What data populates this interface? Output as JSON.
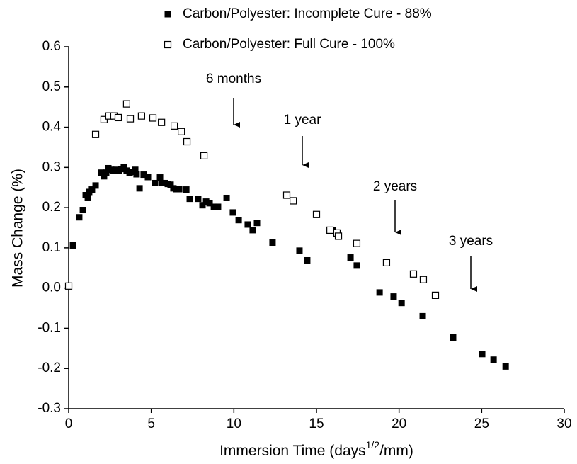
{
  "chart_data": {
    "type": "scatter",
    "xlabel": [
      "Immersion Time (days",
      "1/2",
      "/mm)"
    ],
    "ylabel": "Mass Change (%)",
    "xlim": [
      0,
      30
    ],
    "xticks": [
      0,
      5,
      10,
      15,
      20,
      25,
      30
    ],
    "ylim": [
      -0.3,
      0.6
    ],
    "yticks": [
      -0.3,
      -0.2,
      -0.1,
      {
        "value": 0,
        "label": "0.0"
      },
      0.1,
      0.2,
      0.3,
      0.4,
      0.5,
      0.6
    ],
    "annotations": [
      "6 months",
      "1 year",
      "2 years",
      "3 years"
    ],
    "series": [
      {
        "name": "Carbon/Polyester: Incomplete Cure - 88%",
        "color": "#000000",
        "marker": "filled",
        "x": [
          0.26,
          0.64,
          0.86,
          1.03,
          1.16,
          1.24,
          1.41,
          1.63,
          1.97,
          2.14,
          2.27,
          2.4,
          2.57,
          2.7,
          2.87,
          3.04,
          3.17,
          3.34,
          3.51,
          3.69,
          3.86,
          4.03,
          4.11,
          4.29,
          4.54,
          4.8,
          5.23,
          5.53,
          5.66,
          5.83,
          6.0,
          6.17,
          6.34,
          6.52,
          6.69,
          7.12,
          7.33,
          7.84,
          8.1,
          8.32,
          8.53,
          8.79,
          9.04,
          9.56,
          9.94,
          10.29,
          10.84,
          11.14,
          11.4,
          12.34,
          13.97,
          14.44,
          15.99,
          16.33,
          17.06,
          17.44,
          18.82,
          19.67,
          20.15,
          21.43,
          23.27,
          25.03,
          25.72,
          26.45
        ],
        "values": [
          0.106,
          0.176,
          0.194,
          0.231,
          0.224,
          0.239,
          0.245,
          0.255,
          0.287,
          0.278,
          0.287,
          0.298,
          0.294,
          0.292,
          0.294,
          0.292,
          0.296,
          0.301,
          0.292,
          0.287,
          0.289,
          0.294,
          0.283,
          0.248,
          0.282,
          0.276,
          0.261,
          0.275,
          0.261,
          0.261,
          0.259,
          0.257,
          0.248,
          0.246,
          0.246,
          0.245,
          0.222,
          0.222,
          0.206,
          0.215,
          0.211,
          0.202,
          0.202,
          0.224,
          0.188,
          0.169,
          0.158,
          0.144,
          0.162,
          0.113,
          0.093,
          0.069,
          0.143,
          0.13,
          0.076,
          0.056,
          -0.011,
          -0.021,
          -0.037,
          -0.07,
          -0.123,
          -0.164,
          -0.178,
          -0.195
        ]
      },
      {
        "name": "Carbon/Polyester: Full Cure - 100%",
        "color": "#000000",
        "marker": "open",
        "x": [
          0.0,
          1.63,
          2.14,
          2.44,
          2.74,
          3.0,
          3.51,
          3.73,
          4.41,
          5.1,
          5.62,
          6.39,
          6.82,
          7.16,
          8.19,
          13.2,
          13.59,
          15.0,
          15.82,
          16.24,
          16.33,
          17.44,
          19.24,
          20.87,
          21.47,
          22.2
        ],
        "values": [
          0.005,
          0.382,
          0.419,
          0.428,
          0.428,
          0.424,
          0.458,
          0.421,
          0.428,
          0.423,
          0.412,
          0.403,
          0.389,
          0.364,
          0.329,
          0.231,
          0.217,
          0.183,
          0.144,
          0.137,
          0.129,
          0.111,
          0.063,
          0.035,
          0.021,
          -0.018
        ]
      }
    ]
  }
}
